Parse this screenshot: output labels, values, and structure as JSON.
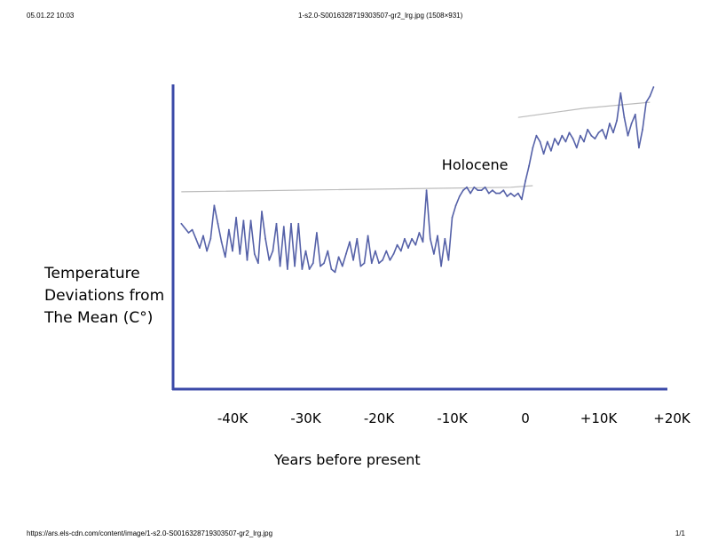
{
  "header": {
    "date": "05.01.22 10:03",
    "title": "1-s2.0-S0016328719303507-gr2_lrg.jpg (1508×931)"
  },
  "footer": {
    "url": "https://ars.els-cdn.com/content/image/1-s2.0-S0016328719303507-gr2_lrg.jpg",
    "page": "1/1"
  },
  "chart_data": {
    "type": "line",
    "title": "",
    "xlabel": "Years before present",
    "ylabel": [
      "Temperature",
      "Deviations from",
      "The Mean (C°)"
    ],
    "xlim": [
      -48000,
      21000
    ],
    "ylim": [
      0,
      10
    ],
    "tick_labels": [
      {
        "value": -40000,
        "label": "-40K"
      },
      {
        "value": -30000,
        "label": "-30K"
      },
      {
        "value": -20000,
        "label": "-20K"
      },
      {
        "value": -10000,
        "label": "-10K"
      },
      {
        "value": 0,
        "label": "0"
      },
      {
        "value": 10000,
        "label": "+10K"
      },
      {
        "value": 20000,
        "label": "+20K"
      }
    ],
    "annotations": [
      {
        "text": "Holocene",
        "x": -9000,
        "y": 7.4
      }
    ],
    "color": "#5561a8",
    "axis_color": "#3b4aa8",
    "guide_color": "#bcbcbc",
    "guide_lines": [
      {
        "x": [
          -47000,
          -2000,
          1000
        ],
        "y": [
          6.55,
          6.7,
          6.75
        ]
      },
      {
        "x": [
          -1000,
          8000,
          17000
        ],
        "y": [
          9.0,
          9.3,
          9.5
        ]
      }
    ],
    "series": [
      {
        "name": "Temperature deviation",
        "x": [
          -47000,
          -46000,
          -45500,
          -45000,
          -44500,
          -44000,
          -43500,
          -43000,
          -42500,
          -42000,
          -41500,
          -41000,
          -40500,
          -40000,
          -39500,
          -39000,
          -38500,
          -38000,
          -37500,
          -37000,
          -36500,
          -36000,
          -35500,
          -35000,
          -34500,
          -34000,
          -33500,
          -33000,
          -32500,
          -32000,
          -31500,
          -31000,
          -30500,
          -30000,
          -29500,
          -29000,
          -28500,
          -28000,
          -27500,
          -27000,
          -26500,
          -26000,
          -25500,
          -25000,
          -24500,
          -24000,
          -23500,
          -23000,
          -22500,
          -22000,
          -21500,
          -21000,
          -20500,
          -20000,
          -19500,
          -19000,
          -18500,
          -18000,
          -17500,
          -17000,
          -16500,
          -16000,
          -15500,
          -15000,
          -14500,
          -14000,
          -13500,
          -13000,
          -12500,
          -12000,
          -11500,
          -11000,
          -10500,
          -10000,
          -9500,
          -9000,
          -8500,
          -8000,
          -7500,
          -7000,
          -6500,
          -6000,
          -5500,
          -5000,
          -4500,
          -4000,
          -3500,
          -3000,
          -2500,
          -2000,
          -1500,
          -1000,
          -500,
          0,
          500,
          1000,
          1500,
          2000,
          2500,
          3000,
          3500,
          4000,
          4500,
          5000,
          5500,
          6000,
          6500,
          7000,
          7500,
          8000,
          8500,
          9000,
          9500,
          10000,
          10500,
          11000,
          11500,
          12000,
          12500,
          13000,
          13500,
          14000,
          14500,
          15000,
          15500,
          16000,
          16500,
          17000,
          17500
        ],
        "values": [
          5.5,
          5.2,
          5.3,
          5.0,
          4.7,
          5.1,
          4.6,
          5.0,
          6.1,
          5.5,
          4.9,
          4.4,
          5.3,
          4.6,
          5.7,
          4.5,
          5.6,
          4.3,
          5.6,
          4.5,
          4.2,
          5.9,
          5.0,
          4.3,
          4.6,
          5.5,
          4.1,
          5.4,
          4.0,
          5.5,
          4.1,
          5.5,
          4.0,
          4.6,
          4.0,
          4.2,
          5.2,
          4.1,
          4.2,
          4.6,
          4.0,
          3.9,
          4.4,
          4.1,
          4.5,
          4.9,
          4.3,
          5.0,
          4.1,
          4.2,
          5.1,
          4.2,
          4.6,
          4.2,
          4.3,
          4.6,
          4.3,
          4.5,
          4.8,
          4.6,
          5.0,
          4.7,
          5.0,
          4.8,
          5.2,
          4.9,
          6.6,
          5.0,
          4.5,
          5.1,
          4.1,
          5.0,
          4.3,
          5.7,
          6.1,
          6.4,
          6.6,
          6.7,
          6.5,
          6.7,
          6.6,
          6.6,
          6.7,
          6.5,
          6.6,
          6.5,
          6.5,
          6.6,
          6.4,
          6.5,
          6.4,
          6.5,
          6.3,
          6.9,
          7.4,
          8.0,
          8.4,
          8.2,
          7.8,
          8.2,
          7.9,
          8.3,
          8.1,
          8.4,
          8.2,
          8.5,
          8.3,
          8.0,
          8.4,
          8.2,
          8.6,
          8.4,
          8.3,
          8.5,
          8.6,
          8.3,
          8.8,
          8.5,
          8.9,
          9.8,
          9.0,
          8.4,
          8.8,
          9.1,
          8.0,
          8.6,
          9.5,
          9.7,
          10.0
        ]
      }
    ]
  }
}
